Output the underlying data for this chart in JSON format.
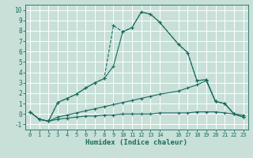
{
  "xlabel": "Humidex (Indice chaleur)",
  "bg_color": "#c8e0d8",
  "grid_color": "#ffffff",
  "line_color": "#1a6b60",
  "x_ticks": [
    0,
    1,
    2,
    3,
    4,
    5,
    6,
    7,
    8,
    9,
    10,
    11,
    12,
    13,
    14,
    16,
    17,
    18,
    19,
    20,
    21,
    22,
    23
  ],
  "xlim": [
    -0.5,
    23.5
  ],
  "ylim": [
    -1.5,
    10.5
  ],
  "y_ticks": [
    -1,
    0,
    1,
    2,
    3,
    4,
    5,
    6,
    7,
    8,
    9,
    10
  ],
  "series": [
    {
      "x": [
        0,
        1,
        2,
        3,
        4,
        5,
        6,
        7,
        8,
        9,
        10,
        11,
        12,
        13,
        14,
        16,
        17,
        18,
        19,
        20,
        21,
        22,
        23
      ],
      "y": [
        0.2,
        -0.5,
        -0.7,
        -0.5,
        -0.4,
        -0.3,
        -0.2,
        -0.2,
        -0.1,
        -0.1,
        0.0,
        0.0,
        0.0,
        0.0,
        0.1,
        0.1,
        0.1,
        0.2,
        0.2,
        0.2,
        0.1,
        0.0,
        -0.1
      ]
    },
    {
      "x": [
        0,
        1,
        2,
        3,
        4,
        5,
        6,
        7,
        8,
        9,
        10,
        11,
        12,
        13,
        14,
        16,
        17,
        18,
        19,
        20,
        21,
        22,
        23
      ],
      "y": [
        0.2,
        -0.5,
        -0.7,
        -0.3,
        -0.1,
        0.1,
        0.3,
        0.5,
        0.7,
        0.9,
        1.1,
        1.3,
        1.5,
        1.7,
        1.9,
        2.2,
        2.5,
        2.8,
        3.2,
        1.2,
        1.0,
        0.0,
        -0.3
      ]
    },
    {
      "x": [
        0,
        1,
        2,
        3,
        4,
        5,
        6,
        7,
        8,
        9,
        10,
        11,
        12,
        13,
        14,
        16,
        17,
        18,
        19,
        20,
        21,
        22,
        23
      ],
      "y": [
        0.2,
        -0.5,
        -0.7,
        1.1,
        1.5,
        1.9,
        2.5,
        3.0,
        3.4,
        8.5,
        7.9,
        8.3,
        9.8,
        9.6,
        8.8,
        6.7,
        5.9,
        3.2,
        3.3,
        1.2,
        1.0,
        0.0,
        -0.3
      ]
    },
    {
      "x": [
        0,
        1,
        2,
        3,
        4,
        5,
        6,
        7,
        8,
        9,
        10,
        11,
        12,
        13,
        14,
        16,
        17,
        18,
        19,
        20,
        21,
        22,
        23
      ],
      "y": [
        0.2,
        -0.5,
        -0.7,
        1.1,
        1.5,
        1.9,
        2.5,
        3.0,
        3.4,
        4.6,
        7.9,
        8.3,
        9.8,
        9.6,
        8.8,
        6.7,
        5.9,
        3.2,
        3.3,
        1.2,
        1.0,
        0.0,
        -0.3
      ]
    }
  ]
}
